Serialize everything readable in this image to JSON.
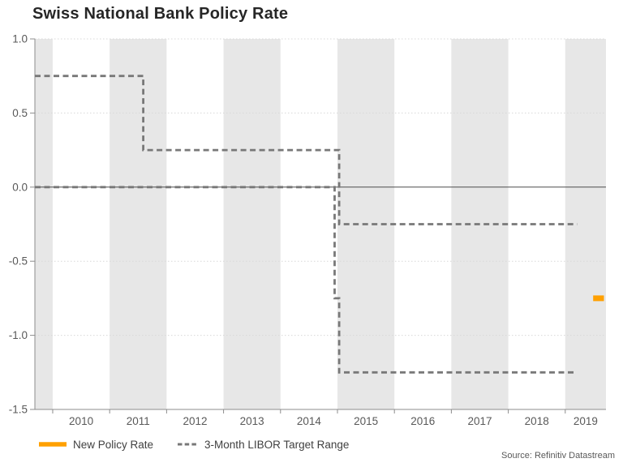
{
  "chart_data": {
    "type": "line",
    "title": "Swiss National Bank Policy Rate",
    "source": "Source: Refinitiv Datastream",
    "xlim": [
      2009.687,
      2019.715
    ],
    "ylim": [
      -1.5,
      1.0
    ],
    "yticks": [
      {
        "value": 1.0,
        "label": "1.0"
      },
      {
        "value": 0.5,
        "label": "0.5"
      },
      {
        "value": 0.0,
        "label": "0.0"
      },
      {
        "value": -0.5,
        "label": "-0.5"
      },
      {
        "value": -1.0,
        "label": "-1.0"
      },
      {
        "value": -1.5,
        "label": "-1.5"
      }
    ],
    "xticks": [
      {
        "value": 2010,
        "label": "2010"
      },
      {
        "value": 2011,
        "label": "2011"
      },
      {
        "value": 2012,
        "label": "2012"
      },
      {
        "value": 2013,
        "label": "2013"
      },
      {
        "value": 2014,
        "label": "2014"
      },
      {
        "value": 2015,
        "label": "2015"
      },
      {
        "value": 2016,
        "label": "2016"
      },
      {
        "value": 2017,
        "label": "2017"
      },
      {
        "value": 2018,
        "label": "2018"
      },
      {
        "value": 2019,
        "label": "2019"
      }
    ],
    "dotted_gridlines": [
      1.0,
      0.5,
      -0.5,
      -1.0
    ],
    "zero_line": 0.0,
    "shaded_year_bands": [
      [
        2009.687,
        2010
      ],
      [
        2011,
        2012
      ],
      [
        2013,
        2014
      ],
      [
        2015,
        2016
      ],
      [
        2017,
        2018
      ],
      [
        2019,
        2019.715
      ]
    ],
    "series": [
      {
        "id": "libor-upper",
        "name": "3-Month LIBOR Target Range (upper bound)",
        "style": "dashed",
        "color": "#787878",
        "points": [
          [
            2009.687,
            0.75
          ],
          [
            2011.59,
            0.75
          ],
          [
            2011.59,
            0.25
          ],
          [
            2015.03,
            0.25
          ],
          [
            2015.03,
            -0.25
          ],
          [
            2019.21,
            -0.25
          ]
        ]
      },
      {
        "id": "libor-lower",
        "name": "3-Month LIBOR Target Range (lower bound)",
        "style": "dashed",
        "color": "#787878",
        "points": [
          [
            2009.687,
            0.0
          ],
          [
            2014.95,
            0.0
          ],
          [
            2014.95,
            -0.75
          ],
          [
            2015.03,
            -0.75
          ],
          [
            2015.03,
            -1.25
          ],
          [
            2019.21,
            -1.25
          ]
        ]
      },
      {
        "id": "new-policy-rate",
        "name": "New Policy Rate",
        "style": "solid",
        "color": "#FFA000",
        "points": [
          [
            2019.49,
            -0.75
          ],
          [
            2019.68,
            -0.75
          ]
        ]
      }
    ],
    "legend": [
      {
        "label": "New Policy Rate",
        "swatch": "solid",
        "color": "#FFA000"
      },
      {
        "label": "3-Month LIBOR Target Range",
        "swatch": "dashed",
        "color": "#787878"
      }
    ],
    "colors": {
      "band": "#e7e7e7",
      "axis": "#8c8c8c",
      "grid": "#d8d8d8",
      "zero_line": "#4d4d4d",
      "tick_text": "#595959",
      "title_text": "#262626",
      "legend_text": "#404040",
      "source_text": "#595959"
    }
  }
}
